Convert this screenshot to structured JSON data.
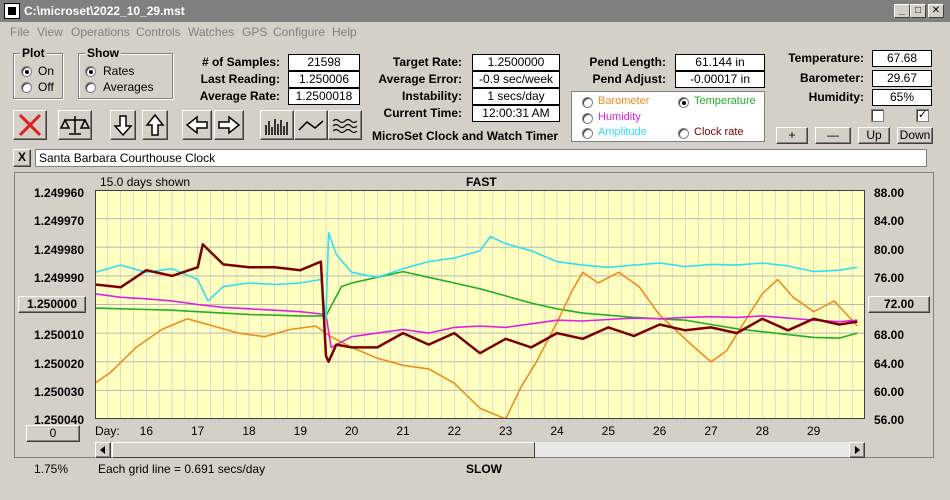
{
  "window": {
    "title": "C:\\microset\\2022_10_29.mst"
  },
  "menu": [
    "File",
    "View",
    "Operations",
    "Controls",
    "Watches",
    "GPS",
    "Configure",
    "Help"
  ],
  "plot": {
    "legend": "Plot",
    "on": "On",
    "off": "Off",
    "selected": "On"
  },
  "show": {
    "legend": "Show",
    "rates": "Rates",
    "averages": "Averages",
    "selected": "Rates"
  },
  "stats": {
    "samples_label": "# of Samples:",
    "samples": "21598",
    "last_reading_label": "Last Reading:",
    "last_reading": "1.250006",
    "average_rate_label": "Average Rate:",
    "average_rate": "1.2500018",
    "target_rate_label": "Target Rate:",
    "target_rate": "1.2500000",
    "average_error_label": "Average Error:",
    "average_error": "-0.9 sec/week",
    "instability_label": "Instability:",
    "instability": "1 secs/day",
    "current_time_label": "Current Time:",
    "current_time": "12:00:31 AM",
    "pend_length_label": "Pend Length:",
    "pend_length": "61.144 in",
    "pend_adjust_label": "Pend Adjust:",
    "pend_adjust": "-0.00017 in",
    "temperature_label": "Temperature:",
    "temperature": "67.68",
    "barometer_label": "Barometer:",
    "barometer": "29.67",
    "humidity_label": "Humidity:",
    "humidity": "65%"
  },
  "app_caption": "MicroSet Clock and Watch Timer",
  "overlay": {
    "barometer": "Barometer",
    "temperature": "Temperature",
    "humidity": "Humidity",
    "amplitude": "Amplitude",
    "clock_rate": "Clock rate",
    "selected": "Temperature"
  },
  "adjust_buttons": {
    "plus": "+",
    "minus": "—",
    "up": "Up",
    "down": "Down"
  },
  "checkboxes": [
    false,
    true
  ],
  "clock_name": {
    "close": "X",
    "value": "Santa Barbara Courthouse Clock"
  },
  "chart_header": {
    "days_shown": "15.0 days shown",
    "fast": "FAST",
    "slow": "SLOW",
    "grid_note": "Each grid line = 0.691 secs/day",
    "percent": "1.75%",
    "day_label": "Day:",
    "left_button": "0",
    "center_left": "1.250000",
    "center_right": "72.00"
  },
  "colors": {
    "rate": "#7b0000",
    "temperature": "#22b022",
    "barometer": "#f08c1e",
    "humidity": "#e020e0",
    "amplitude": "#30e0f0",
    "plot_bg": "#ffffc0",
    "delete_x": "#e02020"
  },
  "chart_data": {
    "type": "line",
    "x_label": "Day:",
    "x_ticks": [
      "16",
      "17",
      "18",
      "19",
      "20",
      "21",
      "22",
      "23",
      "24",
      "25",
      "26",
      "27",
      "28",
      "29"
    ],
    "xlim": [
      15.0,
      30.0
    ],
    "y_left_ticks": [
      "1.249960",
      "1.249970",
      "1.249980",
      "1.249990",
      "1.250000",
      "1.250010",
      "1.250020",
      "1.250030",
      "1.250040"
    ],
    "ylim_left": [
      1.24996,
      1.25004
    ],
    "y_left_inverted": true,
    "y_right_ticks": [
      "88.00",
      "84.00",
      "80.00",
      "76.00",
      "72.00",
      "68.00",
      "64.00",
      "60.00",
      "56.00"
    ],
    "ylim_right": [
      56,
      88
    ],
    "series": [
      {
        "name": "Clock rate",
        "color": "#7b0000",
        "axis": "left",
        "x": [
          15.0,
          15.5,
          16.0,
          16.5,
          17.0,
          17.1,
          17.5,
          18.0,
          18.5,
          19.0,
          19.4,
          19.5,
          19.55,
          19.7,
          20.0,
          20.5,
          21.0,
          21.5,
          22.0,
          22.5,
          23.0,
          23.5,
          24.0,
          24.5,
          25.0,
          25.5,
          26.0,
          26.5,
          27.0,
          27.5,
          28.0,
          28.5,
          29.0,
          29.5,
          29.85
        ],
        "y": [
          1.249993,
          1.249994,
          1.249988,
          1.24999,
          1.249987,
          1.249979,
          1.249986,
          1.249987,
          1.249987,
          1.249988,
          1.249985,
          1.250018,
          1.25002,
          1.250014,
          1.250015,
          1.250015,
          1.25001,
          1.250014,
          1.25001,
          1.250017,
          1.250012,
          1.250015,
          1.25001,
          1.250012,
          1.250008,
          1.250011,
          1.250007,
          1.250009,
          1.250008,
          1.25001,
          1.250005,
          1.250009,
          1.250005,
          1.250007,
          1.250006
        ]
      },
      {
        "name": "Temperature",
        "color": "#22b022",
        "axis": "right",
        "x": [
          15.0,
          15.5,
          16.0,
          16.5,
          17.0,
          17.5,
          18.0,
          18.5,
          19.0,
          19.5,
          19.8,
          20.0,
          20.5,
          21.0,
          21.5,
          22.0,
          22.5,
          23.0,
          23.5,
          24.0,
          24.5,
          25.0,
          25.5,
          26.0,
          26.5,
          27.0,
          27.5,
          28.0,
          28.5,
          29.0,
          29.5,
          29.85
        ],
        "y": [
          71.5,
          71.4,
          71.3,
          71.2,
          71.0,
          70.8,
          70.6,
          70.5,
          70.4,
          70.4,
          74.5,
          75.0,
          75.8,
          76.6,
          75.8,
          75.0,
          74.2,
          73.2,
          72.2,
          71.4,
          70.8,
          70.5,
          70.2,
          70.0,
          69.8,
          69.2,
          68.6,
          68.2,
          67.8,
          67.4,
          67.3,
          68.0
        ]
      },
      {
        "name": "Barometer",
        "color": "#f08c1e",
        "axis": "right",
        "x": [
          15.0,
          15.3,
          15.8,
          16.3,
          16.8,
          17.3,
          17.8,
          18.3,
          18.8,
          19.3,
          19.6,
          20.0,
          20.5,
          21.0,
          21.5,
          22.0,
          22.5,
          23.0,
          23.3,
          23.6,
          24.0,
          24.3,
          24.5,
          24.8,
          25.2,
          25.6,
          26.0,
          26.3,
          26.6,
          27.0,
          27.3,
          27.6,
          28.0,
          28.3,
          28.6,
          29.0,
          29.4,
          29.85
        ],
        "y": [
          61.0,
          62.5,
          66.0,
          68.5,
          70.0,
          69.0,
          68.0,
          67.5,
          68.5,
          69.0,
          67.5,
          66.0,
          64.5,
          63.5,
          63.0,
          61.0,
          57.5,
          56.0,
          60.5,
          64.0,
          69.5,
          74.0,
          76.5,
          75.0,
          76.5,
          74.5,
          70.5,
          68.5,
          66.5,
          64.0,
          65.5,
          69.0,
          73.5,
          75.5,
          73.0,
          71.0,
          72.5,
          69.0
        ]
      },
      {
        "name": "Humidity",
        "color": "#e020e0",
        "axis": "right",
        "x": [
          15.0,
          15.5,
          16.0,
          16.5,
          17.0,
          17.5,
          18.0,
          18.5,
          19.0,
          19.5,
          19.6,
          20.0,
          20.5,
          21.0,
          21.5,
          22.0,
          22.5,
          23.0,
          23.5,
          24.0,
          24.5,
          25.0,
          25.5,
          26.0,
          26.5,
          27.0,
          27.5,
          28.0,
          28.5,
          29.0,
          29.5,
          29.85
        ],
        "y": [
          73.5,
          73.0,
          72.8,
          72.5,
          72.0,
          71.6,
          71.4,
          71.2,
          71.0,
          70.6,
          66.0,
          67.5,
          68.0,
          68.5,
          68.0,
          68.8,
          69.0,
          68.8,
          69.3,
          69.8,
          69.7,
          69.9,
          70.1,
          70.0,
          70.2,
          70.3,
          70.2,
          70.4,
          70.1,
          69.8,
          69.6,
          69.8
        ]
      },
      {
        "name": "Amplitude",
        "color": "#30e0f0",
        "axis": "right",
        "x": [
          15.0,
          15.5,
          16.0,
          16.5,
          17.0,
          17.2,
          17.5,
          18.0,
          18.5,
          19.0,
          19.4,
          19.5,
          19.55,
          19.7,
          20.0,
          20.5,
          21.0,
          21.5,
          22.0,
          22.5,
          22.7,
          23.0,
          23.5,
          24.0,
          24.5,
          25.0,
          25.5,
          26.0,
          26.5,
          27.0,
          27.5,
          28.0,
          28.5,
          29.0,
          29.5,
          29.85
        ],
        "y": [
          76.5,
          77.5,
          76.5,
          77.0,
          75.5,
          72.5,
          74.5,
          75.0,
          74.8,
          75.0,
          75.5,
          70.0,
          82.0,
          79.0,
          76.5,
          75.8,
          77.0,
          78.0,
          78.5,
          79.5,
          81.5,
          80.5,
          79.5,
          78.0,
          77.5,
          77.2,
          77.5,
          77.8,
          77.3,
          77.6,
          77.5,
          77.8,
          77.4,
          76.6,
          76.8,
          77.2
        ]
      }
    ]
  }
}
